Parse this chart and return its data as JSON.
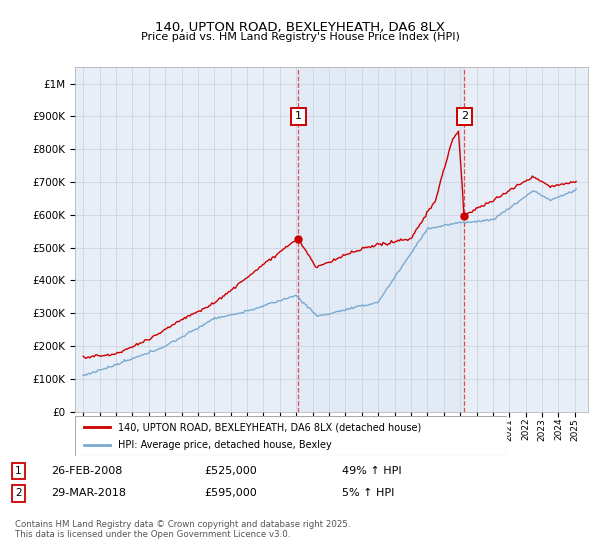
{
  "title1": "140, UPTON ROAD, BEXLEYHEATH, DA6 8LX",
  "title2": "Price paid vs. HM Land Registry's House Price Index (HPI)",
  "background_color": "#ffffff",
  "plot_bg_color": "#e8eef8",
  "grid_color": "#c8d0dc",
  "red_line_color": "#cc0000",
  "blue_line_color": "#7aaad0",
  "sale1_date_x": 2008.12,
  "sale1_price": 525000,
  "sale2_date_x": 2018.25,
  "sale2_price": 595000,
  "legend_label_red": "140, UPTON ROAD, BEXLEYHEATH, DA6 8LX (detached house)",
  "legend_label_blue": "HPI: Average price, detached house, Bexley",
  "note1_date": "26-FEB-2008",
  "note1_price": "£525,000",
  "note1_pct": "49% ↑ HPI",
  "note2_date": "29-MAR-2018",
  "note2_price": "£595,000",
  "note2_pct": "5% ↑ HPI",
  "footer": "Contains HM Land Registry data © Crown copyright and database right 2025.\nThis data is licensed under the Open Government Licence v3.0.",
  "ylim_max": 1050000,
  "yticks": [
    0,
    100000,
    200000,
    300000,
    400000,
    500000,
    600000,
    700000,
    800000,
    900000,
    1000000
  ],
  "xlim_min": 1994.5,
  "xlim_max": 2025.8,
  "marker_y": 900000
}
